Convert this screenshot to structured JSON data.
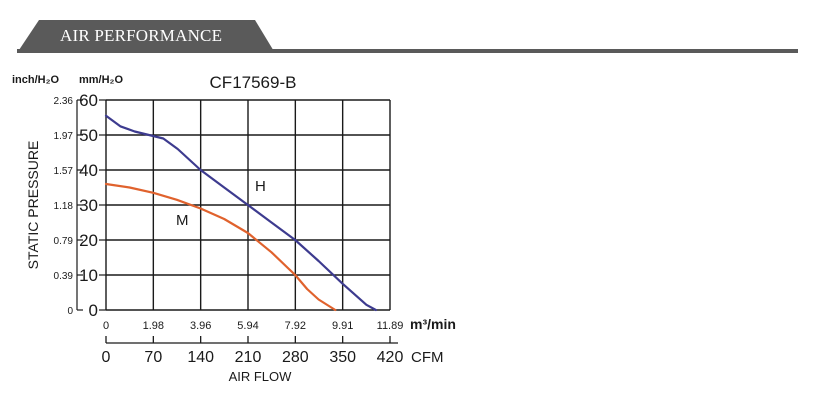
{
  "header": {
    "title": "AIR PERFORMANCE"
  },
  "colors": {
    "header_bg": "#5a5a5a",
    "series_H": "#3d3b8f",
    "series_M": "#e0622d",
    "grid": "#1a1a1a"
  },
  "chart_data": {
    "type": "line",
    "title": "CF17569-B",
    "ylabel": "STATIC PRESSURE",
    "xlabel": "AIR FLOW",
    "unit_left_outer": "inch/H₂O",
    "unit_left_inner": "mm/H₂O",
    "unit_x_primary": "m³/min",
    "unit_x_secondary": "CFM",
    "x_primary_ticks": [
      "0",
      "1.98",
      "3.96",
      "5.94",
      "7.92",
      "9.91",
      "11.89"
    ],
    "x_secondary_ticks": [
      "0",
      "70",
      "140",
      "210",
      "280",
      "350",
      "420"
    ],
    "y_mm_ticks": [
      "0",
      "10",
      "20",
      "30",
      "40",
      "50",
      "60"
    ],
    "y_inch_ticks": [
      "0",
      "0.39",
      "0.79",
      "1.18",
      "1.57",
      "1.97",
      "2.36"
    ],
    "xlim": [
      0,
      11.89
    ],
    "ylim": [
      0,
      60
    ],
    "grid": true,
    "series": [
      {
        "name": "H",
        "x": [
          0,
          0.6,
          1.2,
          2.4,
          3.0,
          3.96,
          4.95,
          5.94,
          6.93,
          7.92,
          8.9,
          9.91,
          10.9,
          11.3
        ],
        "y": [
          55.5,
          52.5,
          51,
          49,
          46,
          40,
          35,
          30,
          25,
          20,
          14,
          7.5,
          1.5,
          0
        ]
      },
      {
        "name": "M",
        "x": [
          0,
          0.99,
          1.98,
          2.97,
          3.96,
          4.95,
          5.94,
          6.93,
          7.92,
          8.42,
          8.9,
          9.6
        ],
        "y": [
          36,
          35,
          33.5,
          31.5,
          29,
          26,
          22,
          16.5,
          10,
          6,
          3,
          0
        ]
      }
    ]
  }
}
